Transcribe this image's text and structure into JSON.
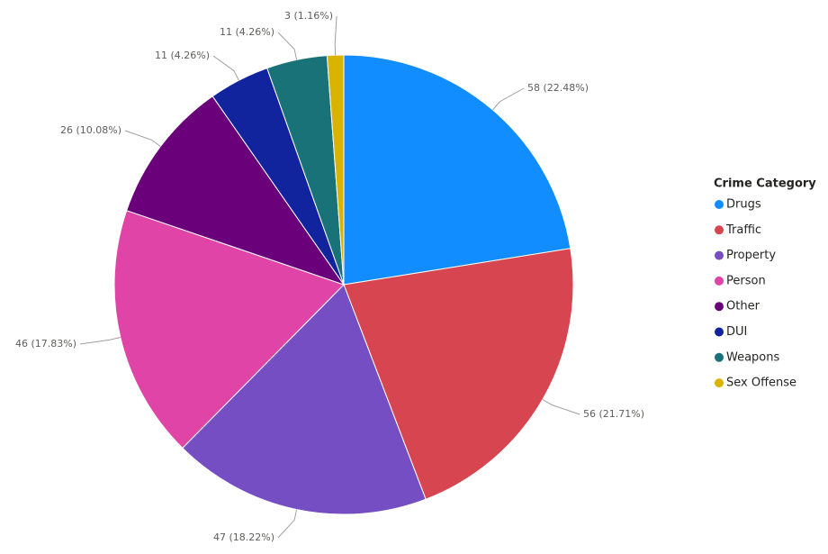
{
  "chart_data": {
    "type": "pie",
    "legend_title": "Crime Category",
    "legend": "right",
    "categories": [
      "Drugs",
      "Traffic",
      "Property",
      "Person",
      "Other",
      "DUI",
      "Weapons",
      "Sex Offense"
    ],
    "values": [
      58,
      56,
      47,
      46,
      26,
      11,
      11,
      3
    ],
    "value_labels": [
      "58 (22.48%)",
      "56 (21.71%)",
      "47 (18.22%)",
      "46 (17.83%)",
      "26 (10.08%)",
      "11 (4.26%)",
      "11 (4.26%)",
      "3 (1.16%)"
    ],
    "colors": [
      "#118DFF",
      "#D64550",
      "#744EC2",
      "#E044A7",
      "#6B007B",
      "#12239E",
      "#197278",
      "#D9B300"
    ]
  }
}
